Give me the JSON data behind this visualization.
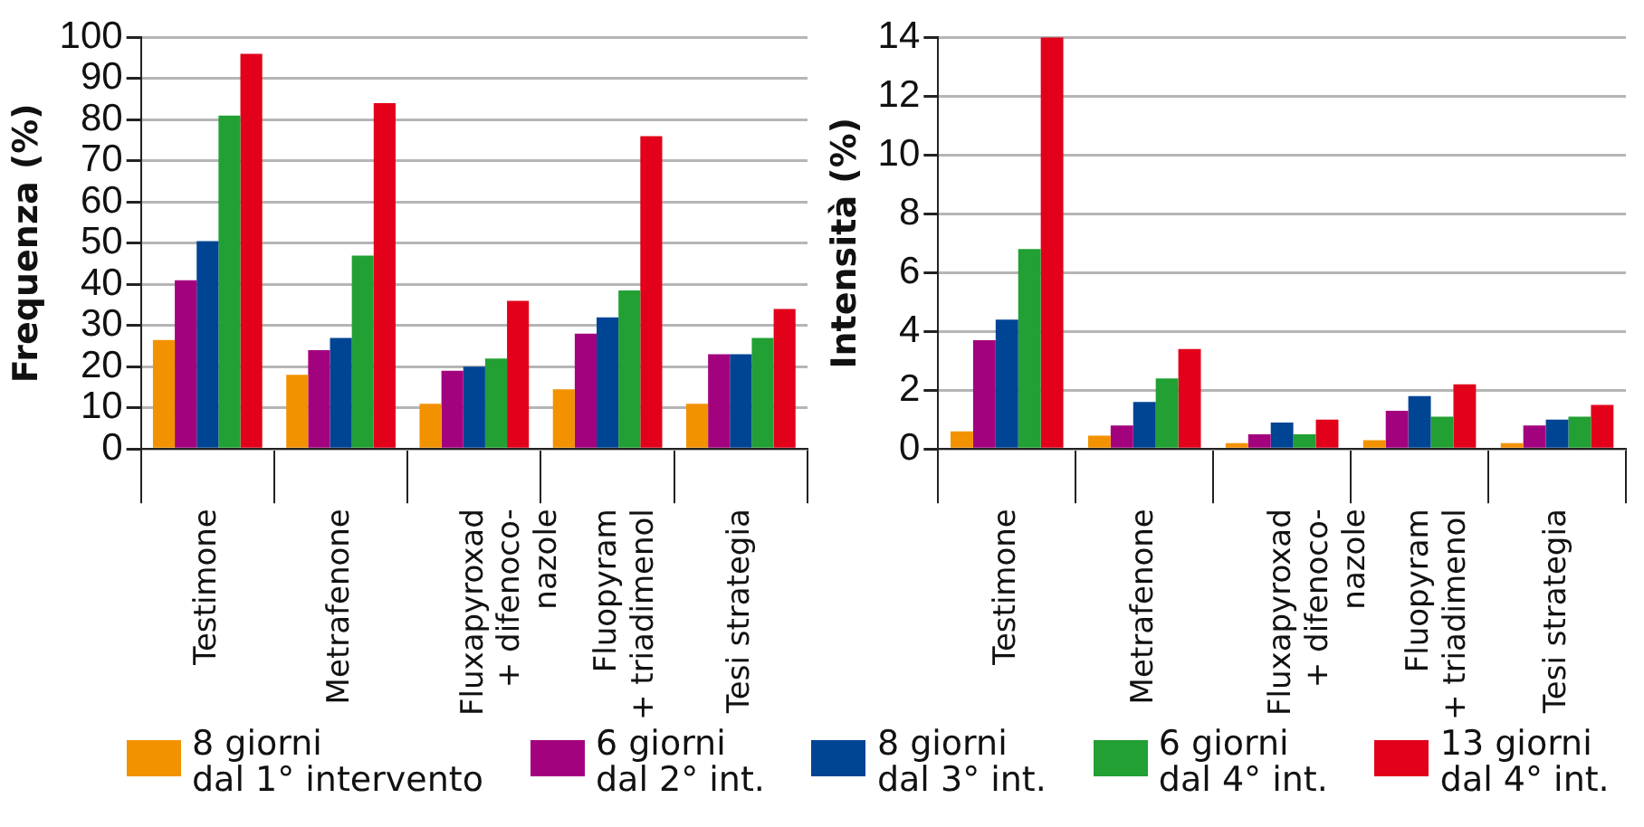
{
  "chart_data": [
    {
      "type": "bar",
      "ylabel": "Frequenza (%)",
      "categories": [
        "Testimone",
        "Metrafenone",
        "Fluxapyroxad\n+ difenoco-\nnazole",
        "Fluopyram\n+ triadimenol",
        "Tesi strategia"
      ],
      "ylim": [
        0,
        100
      ],
      "yticks": [
        0,
        10,
        20,
        30,
        40,
        50,
        60,
        70,
        80,
        90,
        100
      ],
      "grid": "y",
      "legend": "bottom",
      "series": [
        {
          "name": "8 giorni\ndal 1° intervento",
          "color": "#f39200",
          "values": [
            26.5,
            18,
            11,
            14.5,
            11
          ]
        },
        {
          "name": "6 giorni\ndal 2° int.",
          "color": "#a3027f",
          "values": [
            41,
            24,
            19,
            28,
            23
          ]
        },
        {
          "name": "8 giorni\ndal 3° int.",
          "color": "#004494",
          "values": [
            50.5,
            27,
            20,
            32,
            23
          ]
        },
        {
          "name": "6 giorni\ndal 4° int.",
          "color": "#22a033",
          "values": [
            81,
            47,
            22,
            38.5,
            27
          ]
        },
        {
          "name": "13 giorni\ndal 4° int.",
          "color": "#e2001a",
          "values": [
            96,
            84,
            36,
            76,
            34
          ]
        }
      ]
    },
    {
      "type": "bar",
      "ylabel": "Intensità (%)",
      "categories": [
        "Testimone",
        "Metrafenone",
        "Fluxapyroxad\n+ difenoco-\nnazole",
        "Fluopyram\n+ triadimenol",
        "Tesi strategia"
      ],
      "ylim": [
        0,
        14
      ],
      "yticks": [
        0,
        2,
        4,
        6,
        8,
        10,
        12,
        14
      ],
      "grid": "y",
      "series": [
        {
          "color": "#f39200",
          "values": [
            0.6,
            0.45,
            0.2,
            0.3,
            0.2
          ]
        },
        {
          "color": "#a3027f",
          "values": [
            3.7,
            0.8,
            0.5,
            1.3,
            0.8
          ]
        },
        {
          "color": "#004494",
          "values": [
            4.4,
            1.6,
            0.9,
            1.8,
            1.0
          ]
        },
        {
          "color": "#22a033",
          "values": [
            6.8,
            2.4,
            0.5,
            1.1,
            1.1
          ]
        },
        {
          "color": "#e2001a",
          "values": [
            14,
            3.4,
            1.0,
            2.2,
            1.5
          ]
        }
      ]
    }
  ]
}
